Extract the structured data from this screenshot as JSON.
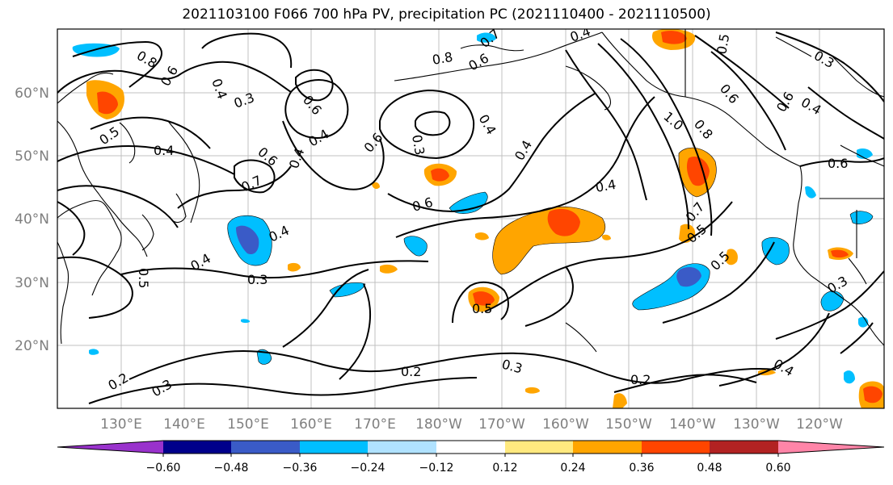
{
  "title": "2021103100 F066 700 hPa PV, precipitation PC (2021110400 - 2021110500)",
  "map": {
    "lat_labels": [
      "60°N",
      "50°N",
      "40°N",
      "30°N",
      "20°N"
    ],
    "lon_labels": [
      "130°E",
      "140°E",
      "150°E",
      "160°E",
      "170°E",
      "180°W",
      "170°W",
      "160°W",
      "150°W",
      "140°W",
      "130°W",
      "120°W"
    ],
    "contour_labels": [
      "0.8",
      "0.6",
      "0.4",
      "0.3",
      "0.5",
      "0.4",
      "0.7",
      "0.6",
      "0.4",
      "0.6",
      "0.3",
      "0.6",
      "0.4",
      "0.6",
      "0.8",
      "0.7",
      "0.6",
      "0.4",
      "1.0",
      "0.8",
      "0.6",
      "0.3",
      "0.4",
      "0.6",
      "0.4",
      "0.4",
      "0.5",
      "0.4",
      "0.4",
      "0.5",
      "0.4",
      "0.3",
      "0.5",
      "0.7",
      "0.5",
      "0.5",
      "0.3",
      "0.2",
      "0.3",
      "0.2",
      "0.3",
      "0.2",
      "0.4",
      "0.6"
    ]
  },
  "colorbar": {
    "tick_labels": [
      "−0.60",
      "−0.48",
      "−0.36",
      "−0.24",
      "−0.12",
      "0.12",
      "0.24",
      "0.36",
      "0.48",
      "0.60"
    ],
    "colors": [
      "#9932CC",
      "#00008B",
      "#3A5BC7",
      "#00BFFF",
      "#B0E2FF",
      "#FFFFFF",
      "#FFE97F",
      "#FFA500",
      "#FF4500",
      "#B22222",
      "#FF85A8"
    ]
  },
  "colors": {
    "orange": "#FFA500",
    "red_orange": "#FF4500",
    "yellow": "#FFE97F",
    "sky": "#00BFFF",
    "light_sky": "#B0E2FF",
    "royal": "#3A5BC7"
  }
}
